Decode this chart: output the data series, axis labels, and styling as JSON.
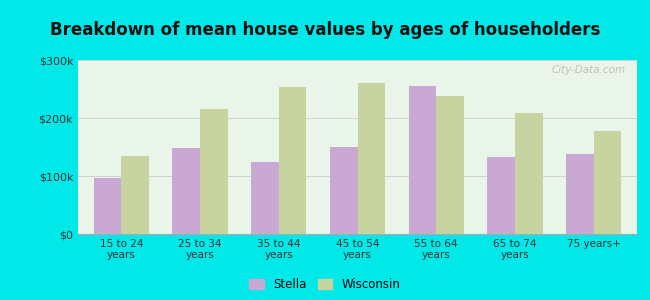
{
  "title": "Breakdown of mean house values by ages of householders",
  "categories": [
    "15 to 24\nyears",
    "25 to 34\nyears",
    "35 to 44\nyears",
    "45 to 54\nyears",
    "55 to 64\nyears",
    "65 to 74\nyears",
    "75 years+"
  ],
  "stella_values": [
    97000,
    148000,
    125000,
    150000,
    255000,
    132000,
    138000
  ],
  "wisconsin_values": [
    135000,
    215000,
    253000,
    260000,
    238000,
    208000,
    178000
  ],
  "stella_color": "#c9a8d4",
  "wisconsin_color": "#c8d4a0",
  "background_color": "#00e8e8",
  "plot_bg": "#e8f5e8",
  "ylim": [
    0,
    300000
  ],
  "yticks": [
    0,
    100000,
    200000,
    300000
  ],
  "ytick_labels": [
    "$0",
    "$100k",
    "$200k",
    "$300k"
  ],
  "title_fontsize": 12,
  "legend_labels": [
    "Stella",
    "Wisconsin"
  ],
  "watermark": "City-Data.com"
}
